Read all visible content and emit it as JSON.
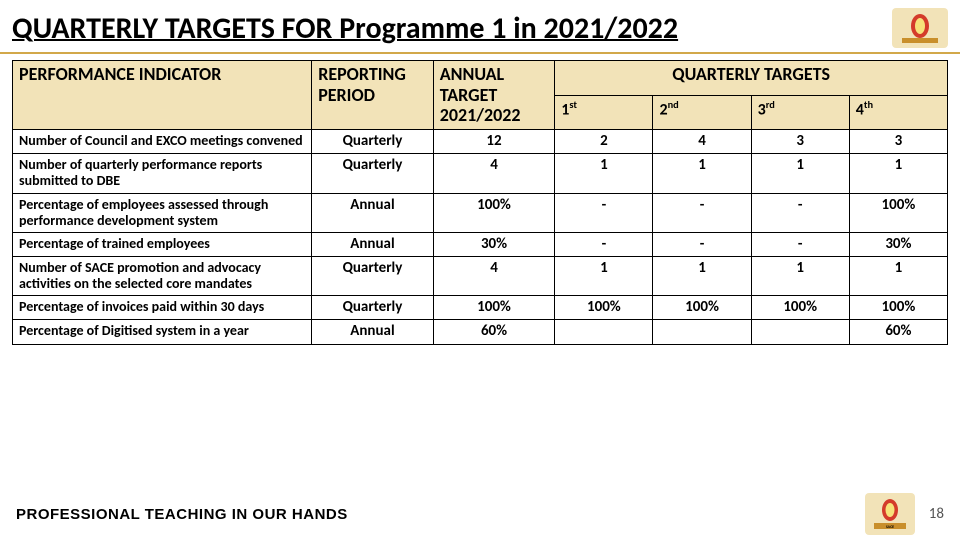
{
  "title": "QUARTERLY TARGETS FOR Programme 1 in 2021/2022",
  "tagline": "PROFESSIONAL TEACHING IN OUR HANDS",
  "page_number": "18",
  "colors": {
    "header_bg": "#f2e3b8",
    "border": "#000000",
    "accent_line": "#d2a84a",
    "logo_accent": "#d43b2a"
  },
  "table": {
    "col_widths_pct": [
      32,
      13,
      13,
      10.5,
      10.5,
      10.5,
      10.5
    ],
    "header": {
      "perf_indicator": "PERFORMANCE INDICATOR",
      "reporting_period": "REPORTING PERIOD",
      "annual_target": "ANNUAL TARGET 2021/2022",
      "quarterly_targets": "QUARTERLY TARGETS",
      "q1": "1",
      "q1_sup": "st",
      "q2": "2",
      "q2_sup": "nd",
      "q3": "3",
      "q3_sup": "rd",
      "q4": "4",
      "q4_sup": "th"
    },
    "rows": [
      {
        "indicator": "Number of Council and EXCO meetings convened",
        "period": "Quarterly",
        "annual": "12",
        "q1": "2",
        "q2": "4",
        "q3": "3",
        "q4": "3"
      },
      {
        "indicator": "Number of quarterly performance reports submitted to DBE",
        "period": "Quarterly",
        "annual": "4",
        "q1": "1",
        "q2": "1",
        "q3": "1",
        "q4": "1"
      },
      {
        "indicator": "Percentage of employees assessed through performance development system",
        "period": "Annual",
        "annual": "100%",
        "q1": "-",
        "q2": "-",
        "q3": "-",
        "q4": "100%"
      },
      {
        "indicator": "Percentage of trained employees",
        "period": "Annual",
        "annual": "30%",
        "q1": "-",
        "q2": "-",
        "q3": "-",
        "q4": "30%"
      },
      {
        "indicator": "Number of SACE promotion and advocacy activities on the selected core mandates",
        "period": "Quarterly",
        "annual": "4",
        "q1": "1",
        "q2": "1",
        "q3": "1",
        "q4": "1"
      },
      {
        "indicator": "Percentage of invoices paid within 30 days",
        "period": "Quarterly",
        "annual": "100%",
        "q1": "100%",
        "q2": "100%",
        "q3": "100%",
        "q4": "100%"
      },
      {
        "indicator": "Percentage of Digitised system in a year",
        "period": "Annual",
        "annual": "60%",
        "q1": "",
        "q2": "",
        "q3": "",
        "q4": "60%"
      }
    ]
  }
}
